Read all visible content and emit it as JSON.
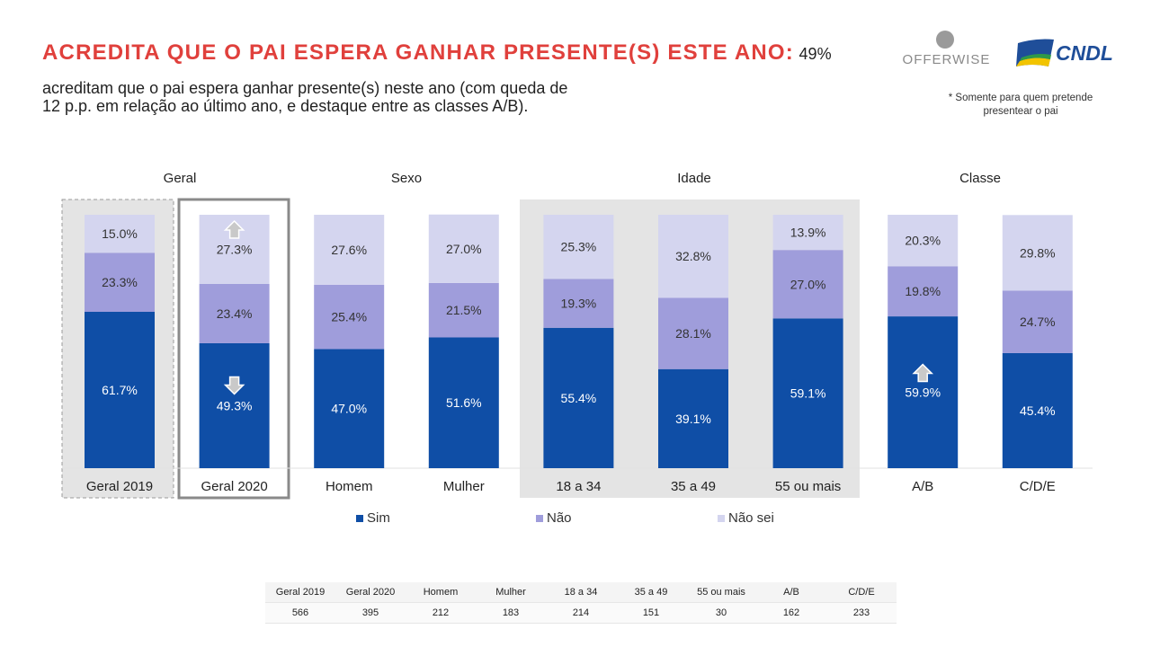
{
  "header": {
    "title_highlight": "ACREDITA QUE O PAI ESPERA GANHAR PRESENTE(S) ESTE ANO:",
    "subtitle_line1": "49% acreditam que o pai espera ganhar presente(s) neste ano (com queda de",
    "subtitle_line2": "12 p.p. em relação ao último ano, e destaque entre as classes A/B).",
    "note_line1": "* Somente para quem pretende",
    "note_line2": "presentear o pai"
  },
  "logos": {
    "offerwise": "OFFERWISE",
    "cndl": "CNDL"
  },
  "groups": {
    "geral": "Geral",
    "sexo": "Sexo",
    "idade": "Idade",
    "classe": "Classe"
  },
  "chart_data": {
    "type": "bar",
    "stacked": true,
    "normalized_percent": true,
    "categories": [
      "Geral 2019",
      "Geral 2020",
      "Homem",
      "Mulher",
      "18 a 34",
      "35 a 49",
      "55 ou mais",
      "A/B",
      "C/D/E"
    ],
    "series": [
      {
        "name": "Sim",
        "color": "#0f4ea6",
        "values": [
          61.7,
          49.3,
          47.0,
          51.6,
          55.4,
          39.1,
          59.1,
          59.9,
          45.4
        ]
      },
      {
        "name": "Não",
        "color": "#9f9ddb",
        "values": [
          23.3,
          23.4,
          25.4,
          21.5,
          19.3,
          28.1,
          27.0,
          19.8,
          24.7
        ]
      },
      {
        "name": "Não sei",
        "color": "#d4d5ef",
        "values": [
          15.0,
          27.3,
          27.6,
          27.0,
          25.3,
          32.8,
          13.9,
          20.3,
          29.8
        ]
      }
    ],
    "labels": [
      [
        "61.7%",
        "23.3%",
        "15.0%"
      ],
      [
        "49.3%",
        "23.4%",
        "27.3%"
      ],
      [
        "47.0%",
        "25.4%",
        "27.6%"
      ],
      [
        "51.6%",
        "21.5%",
        "27.0%"
      ],
      [
        "55.4%",
        "19.3%",
        "25.3%"
      ],
      [
        "39.1%",
        "28.1%",
        "32.8%"
      ],
      [
        "59.1%",
        "27.0%",
        "13.9%"
      ],
      [
        "59.9%",
        "19.8%",
        "20.3%"
      ],
      [
        "45.4%",
        "24.7%",
        "29.8%"
      ]
    ],
    "ylim": [
      0,
      100
    ],
    "legend_position": "bottom",
    "annotations": [
      {
        "category": "Geral 2020",
        "series": "Não sei",
        "arrow": "up"
      },
      {
        "category": "Geral 2020",
        "series": "Sim",
        "arrow": "down"
      },
      {
        "category": "A/B",
        "series": "Sim",
        "arrow": "up"
      }
    ]
  },
  "base_table": {
    "headers": [
      "Geral 2019",
      "Geral 2020",
      "Homem",
      "Mulher",
      "18 a 34",
      "35 a 49",
      "55 ou mais",
      "A/B",
      "C/D/E"
    ],
    "values": [
      "566",
      "395",
      "212",
      "183",
      "214",
      "151",
      "30",
      "162",
      "233"
    ]
  }
}
